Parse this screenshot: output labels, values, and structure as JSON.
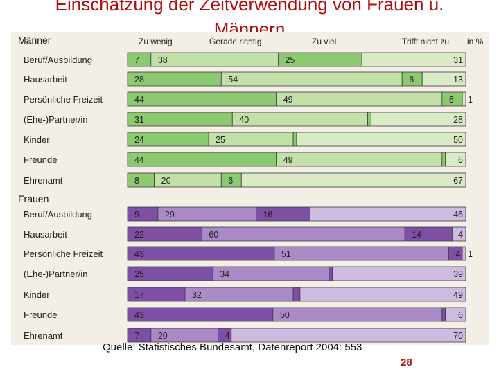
{
  "page": {
    "title_line1": "Einschätzung der Zeitverwendung von Frauen u.",
    "title_line2": "Männern",
    "source": "Quelle: Statistisches Bundesamt, Datenreport 2004: 553",
    "page_number": "28"
  },
  "chart_data": {
    "type": "bar",
    "stacked": true,
    "orientation": "horizontal",
    "unit": "in %",
    "legend_header": [
      "Zu wenig",
      "Gerade richtig",
      "Zu viel",
      "Trifft nicht zu",
      "in %"
    ],
    "groups": [
      {
        "name": "Männer",
        "colors": [
          "#8dc970",
          "#c2e0a8",
          "#8dc970",
          "#d8ebc6"
        ],
        "categories": [
          "Beruf/Ausbildung",
          "Hausarbeit",
          "Persönliche Freizeit",
          "(Ehe-)Partner/in",
          "Kinder",
          "Freunde",
          "Ehrenamt"
        ],
        "series": [
          {
            "name": "Zu wenig",
            "values": [
              7,
              28,
              44,
              31,
              24,
              44,
              8
            ]
          },
          {
            "name": "Gerade richtig",
            "values": [
              38,
              54,
              49,
              40,
              25,
              49,
              20
            ]
          },
          {
            "name": "Zu viel",
            "values": [
              25,
              6,
              6,
              1,
              1,
              1,
              6
            ]
          },
          {
            "name": "Trifft nicht zu",
            "values": [
              31,
              13,
              1,
              28,
              50,
              6,
              67
            ]
          }
        ]
      },
      {
        "name": "Frauen",
        "colors": [
          "#7d4fa5",
          "#a98ac6",
          "#7d4fa5",
          "#cdbbe0"
        ],
        "categories": [
          "Beruf/Ausbildung",
          "Hausarbeit",
          "Persönliche Freizeit",
          "(Ehe-)Partner/in",
          "Kinder",
          "Freunde",
          "Ehrenamt"
        ],
        "series": [
          {
            "name": "Zu wenig",
            "values": [
              9,
              22,
              43,
              25,
              17,
              43,
              7
            ]
          },
          {
            "name": "Gerade richtig",
            "values": [
              29,
              60,
              51,
              34,
              32,
              50,
              20
            ]
          },
          {
            "name": "Zu viel",
            "values": [
              16,
              14,
              4,
              1,
              2,
              1,
              4
            ]
          },
          {
            "name": "Trifft nicht zu",
            "values": [
              46,
              4,
              1,
              39,
              49,
              6,
              70
            ]
          }
        ]
      }
    ]
  }
}
